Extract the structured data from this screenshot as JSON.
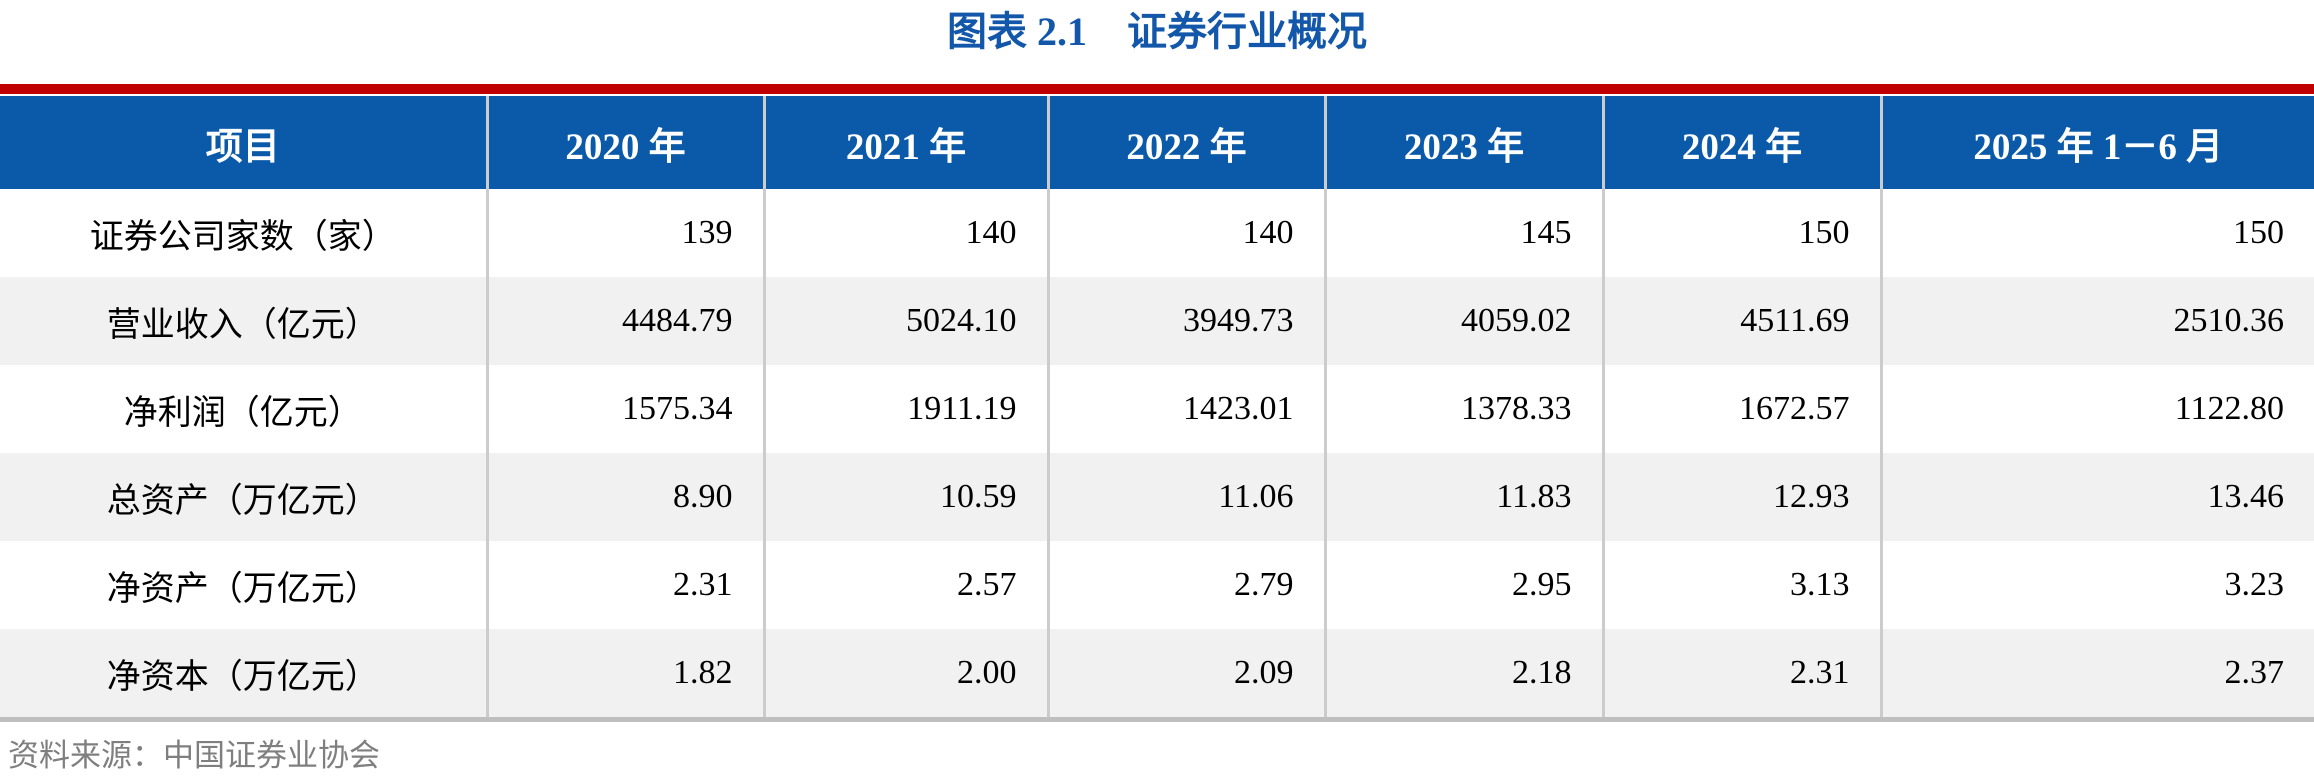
{
  "title": "图表 2.1　证券行业概况",
  "table": {
    "columns": [
      "项目",
      "2020 年",
      "2021 年",
      "2022 年",
      "2023 年",
      "2024 年",
      "2025 年 1－6 月"
    ],
    "rows": [
      {
        "label": "证券公司家数（家）",
        "values": [
          "139",
          "140",
          "140",
          "145",
          "150",
          "150"
        ]
      },
      {
        "label": "营业收入（亿元）",
        "values": [
          "4484.79",
          "5024.10",
          "3949.73",
          "4059.02",
          "4511.69",
          "2510.36"
        ]
      },
      {
        "label": "净利润（亿元）",
        "values": [
          "1575.34",
          "1911.19",
          "1423.01",
          "1378.33",
          "1672.57",
          "1122.80"
        ]
      },
      {
        "label": "总资产（万亿元）",
        "values": [
          "8.90",
          "10.59",
          "11.06",
          "11.83",
          "12.93",
          "13.46"
        ]
      },
      {
        "label": "净资产（万亿元）",
        "values": [
          "2.31",
          "2.57",
          "2.79",
          "2.95",
          "3.13",
          "3.23"
        ]
      },
      {
        "label": "净资本（万亿元）",
        "values": [
          "1.82",
          "2.00",
          "2.09",
          "2.18",
          "2.31",
          "2.37"
        ]
      }
    ]
  },
  "source": "资料来源：中国证券业协会",
  "colors": {
    "accent_red": "#C00000",
    "header_blue": "#0B5AA9",
    "title_blue": "#1257A9",
    "row_alt": "#F1F1F1",
    "divider": "#CCCCCC",
    "bottom_border": "#BFBFBF",
    "source_gray": "#7F7F7F"
  }
}
